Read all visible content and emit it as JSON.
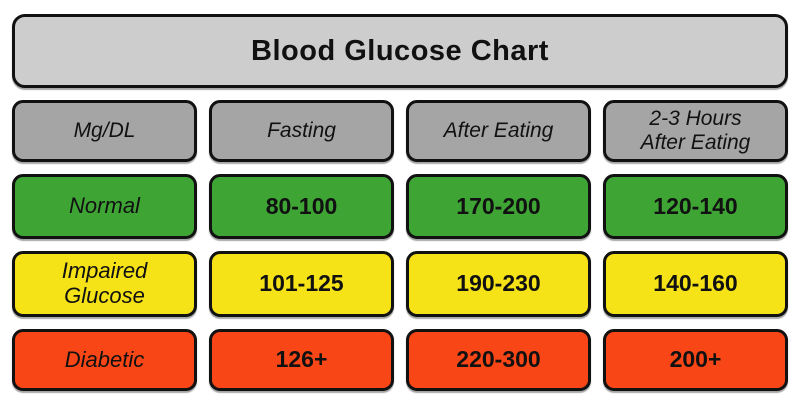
{
  "title": "Blood Glucose Chart",
  "table": {
    "headers": [
      "Mg/DL",
      "Fasting",
      "After Eating",
      "2-3 Hours\nAfter Eating"
    ],
    "rows": [
      {
        "label": "Normal",
        "values": [
          "80-100",
          "170-200",
          "120-140"
        ]
      },
      {
        "label": "Impaired\nGlucose",
        "values": [
          "101-125",
          "190-230",
          "140-160"
        ]
      },
      {
        "label": "Diabetic",
        "values": [
          "126+",
          "220-300",
          "200+"
        ]
      }
    ]
  },
  "colors": {
    "title_bg": "#cdcdcd",
    "header_bg": "#a5a5a5",
    "green": "#3ea535",
    "yellow": "#f5e217",
    "red": "#f94616",
    "border": "#111111"
  },
  "chart_data": {
    "type": "table",
    "title": "Blood Glucose Chart",
    "unit": "Mg/DL",
    "columns": [
      "Mg/DL",
      "Fasting",
      "After Eating",
      "2-3 Hours After Eating"
    ],
    "rows": [
      {
        "category": "Normal",
        "fasting": "80-100",
        "after_eating": "170-200",
        "hours_2_3_after_eating": "120-140",
        "row_color": "#3ea535"
      },
      {
        "category": "Impaired Glucose",
        "fasting": "101-125",
        "after_eating": "190-230",
        "hours_2_3_after_eating": "140-160",
        "row_color": "#f5e217"
      },
      {
        "category": "Diabetic",
        "fasting": "126+",
        "after_eating": "220-300",
        "hours_2_3_after_eating": "200+",
        "row_color": "#f94616"
      }
    ],
    "legend_position": "none",
    "grid": false
  }
}
